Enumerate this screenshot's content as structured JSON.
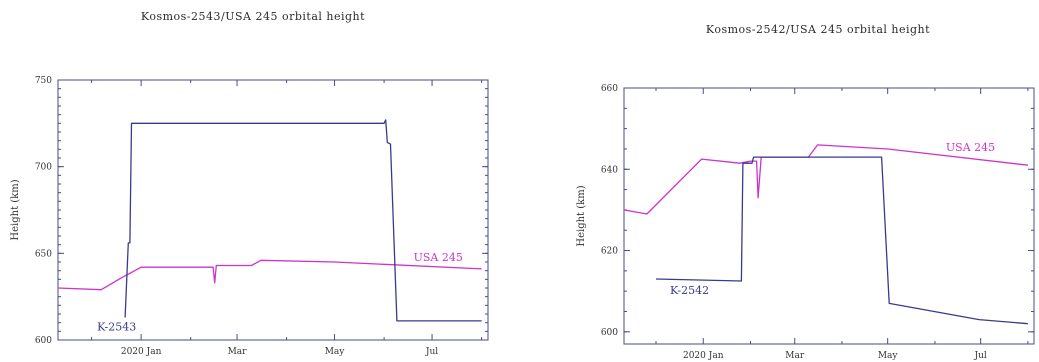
{
  "chart_data": [
    {
      "type": "line",
      "title": "Kosmos-2543/USA 245 orbital height",
      "xlabel": "",
      "ylabel": "Height (km)",
      "ylim": [
        600,
        750
      ],
      "yticks": [
        "600",
        "650",
        "700",
        "750"
      ],
      "xlim": [
        "2019-11-10",
        "2020-08-05"
      ],
      "xticks": [
        {
          "date": "2020-01-01",
          "label": "2020 Jan"
        },
        {
          "date": "2020-03-01",
          "label": "Mar"
        },
        {
          "date": "2020-05-01",
          "label": "May"
        },
        {
          "date": "2020-07-01",
          "label": "Jul"
        }
      ],
      "grid": false,
      "series": [
        {
          "name": "USA 245",
          "color": "#cc33cc",
          "points": [
            [
              "2019-11-10",
              630
            ],
            [
              "2019-12-07",
              629
            ],
            [
              "2019-12-20",
              636
            ],
            [
              "2020-01-01",
              642
            ],
            [
              "2020-01-25",
              642
            ],
            [
              "2020-02-15",
              642
            ],
            [
              "2020-02-16",
              633
            ],
            [
              "2020-02-17",
              643
            ],
            [
              "2020-03-10",
              643
            ],
            [
              "2020-03-16",
              646
            ],
            [
              "2020-05-01",
              645
            ],
            [
              "2020-08-01",
              641
            ]
          ]
        },
        {
          "name": "K-2543",
          "color": "#3a3a8c",
          "points": [
            [
              "2019-12-22",
              613
            ],
            [
              "2019-12-24",
              656
            ],
            [
              "2019-12-25",
              656
            ],
            [
              "2019-12-26",
              725
            ],
            [
              "2020-06-01",
              725
            ],
            [
              "2020-06-02",
              727
            ],
            [
              "2020-06-03",
              714
            ],
            [
              "2020-06-05",
              713
            ],
            [
              "2020-06-09",
              611
            ],
            [
              "2020-08-01",
              611
            ]
          ]
        }
      ]
    },
    {
      "type": "line",
      "title": "Kosmos-2542/USA 245 orbital height",
      "xlabel": "",
      "ylabel": "Height (km)",
      "ylim": [
        597,
        660
      ],
      "yticks": [
        "600",
        "620",
        "640",
        "660"
      ],
      "xlim": [
        "2019-11-10",
        "2020-08-05"
      ],
      "xticks": [
        {
          "date": "2020-01-01",
          "label": "2020 Jan"
        },
        {
          "date": "2020-03-01",
          "label": "Mar"
        },
        {
          "date": "2020-05-01",
          "label": "May"
        },
        {
          "date": "2020-07-01",
          "label": "Jul"
        }
      ],
      "grid": false,
      "series": [
        {
          "name": "USA 245",
          "color": "#cc33cc",
          "points": [
            [
              "2019-11-10",
              630
            ],
            [
              "2019-11-25",
              629
            ],
            [
              "2019-12-31",
              642.5
            ],
            [
              "2020-01-25",
              641.5
            ],
            [
              "2020-02-01",
              642
            ],
            [
              "2020-02-05",
              642
            ],
            [
              "2020-02-06",
              633
            ],
            [
              "2020-02-08",
              643
            ],
            [
              "2020-03-10",
              643
            ],
            [
              "2020-03-16",
              646
            ],
            [
              "2020-05-01",
              645
            ],
            [
              "2020-08-01",
              641
            ]
          ]
        },
        {
          "name": "K-2542",
          "color": "#3a3a8c",
          "points": [
            [
              "2019-12-01",
              613
            ],
            [
              "2020-01-26",
              612.5
            ],
            [
              "2020-01-27",
              641.5
            ],
            [
              "2020-02-02",
              641.5
            ],
            [
              "2020-02-03",
              643
            ],
            [
              "2020-04-27",
              643
            ],
            [
              "2020-05-02",
              607
            ],
            [
              "2020-06-30",
              603
            ],
            [
              "2020-08-01",
              602
            ]
          ]
        }
      ]
    }
  ]
}
